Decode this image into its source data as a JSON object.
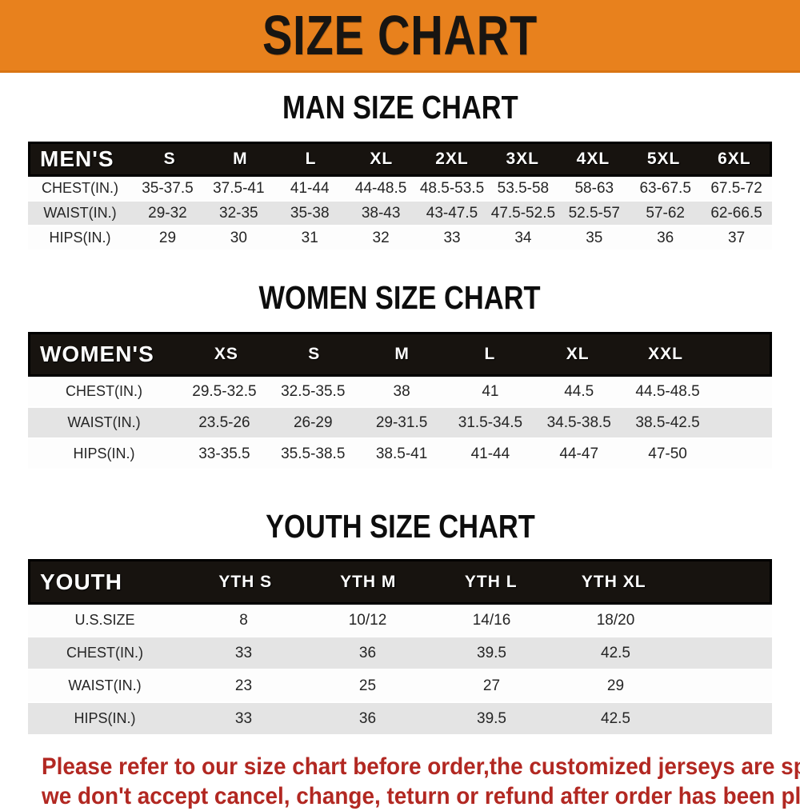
{
  "banner": {
    "title": "SIZE CHART"
  },
  "colors": {
    "banner_bg": "#E8811D",
    "header_bar_bg": "#17130F",
    "row_alt_bg": "#E4E4E4",
    "footer_text": "#B22822"
  },
  "sections": [
    {
      "heading": "MAN SIZE CHART",
      "label": "MEN'S",
      "columns": [
        "S",
        "M",
        "L",
        "XL",
        "2XL",
        "3XL",
        "4XL",
        "5XL",
        "6XL"
      ],
      "rows": [
        {
          "label": "CHEST(IN.)",
          "values": [
            "35-37.5",
            "37.5-41",
            "41-44",
            "44-48.5",
            "48.5-53.5",
            "53.5-58",
            "58-63",
            "63-67.5",
            "67.5-72"
          ]
        },
        {
          "label": "WAIST(IN.)",
          "values": [
            "29-32",
            "32-35",
            "35-38",
            "38-43",
            "43-47.5",
            "47.5-52.5",
            "52.5-57",
            "57-62",
            "62-66.5"
          ]
        },
        {
          "label": "HIPS(IN.)",
          "values": [
            "29",
            "30",
            "31",
            "32",
            "33",
            "34",
            "35",
            "36",
            "37"
          ]
        }
      ]
    },
    {
      "heading": "WOMEN SIZE CHART",
      "label": "WOMEN'S",
      "columns": [
        "XS",
        "S",
        "M",
        "L",
        "XL",
        "XXL"
      ],
      "rows": [
        {
          "label": "CHEST(IN.)",
          "values": [
            "29.5-32.5",
            "32.5-35.5",
            "38",
            "41",
            "44.5",
            "44.5-48.5"
          ]
        },
        {
          "label": "WAIST(IN.)",
          "values": [
            "23.5-26",
            "26-29",
            "29-31.5",
            "31.5-34.5",
            "34.5-38.5",
            "38.5-42.5"
          ]
        },
        {
          "label": "HIPS(IN.)",
          "values": [
            "33-35.5",
            "35.5-38.5",
            "38.5-41",
            "41-44",
            "44-47",
            "47-50"
          ]
        }
      ]
    },
    {
      "heading": "YOUTH SIZE CHART",
      "label": "YOUTH",
      "columns": [
        "YTH S",
        "YTH M",
        "YTH L",
        "YTH XL"
      ],
      "rows": [
        {
          "label": "U.S.SIZE",
          "values": [
            "8",
            "10/12",
            "14/16",
            "18/20"
          ]
        },
        {
          "label": "CHEST(IN.)",
          "values": [
            "33",
            "36",
            "39.5",
            "42.5"
          ]
        },
        {
          "label": "WAIST(IN.)",
          "values": [
            "23",
            "25",
            "27",
            "29"
          ]
        },
        {
          "label": "HIPS(IN.)",
          "values": [
            "33",
            "36",
            "39.5",
            "42.5"
          ]
        }
      ]
    }
  ],
  "footer": {
    "line1": "Please refer to our size chart before order,the customized jerseys are special products,",
    "line2": "we don't accept cancel, change, teturn or refund after order has been placed!"
  }
}
